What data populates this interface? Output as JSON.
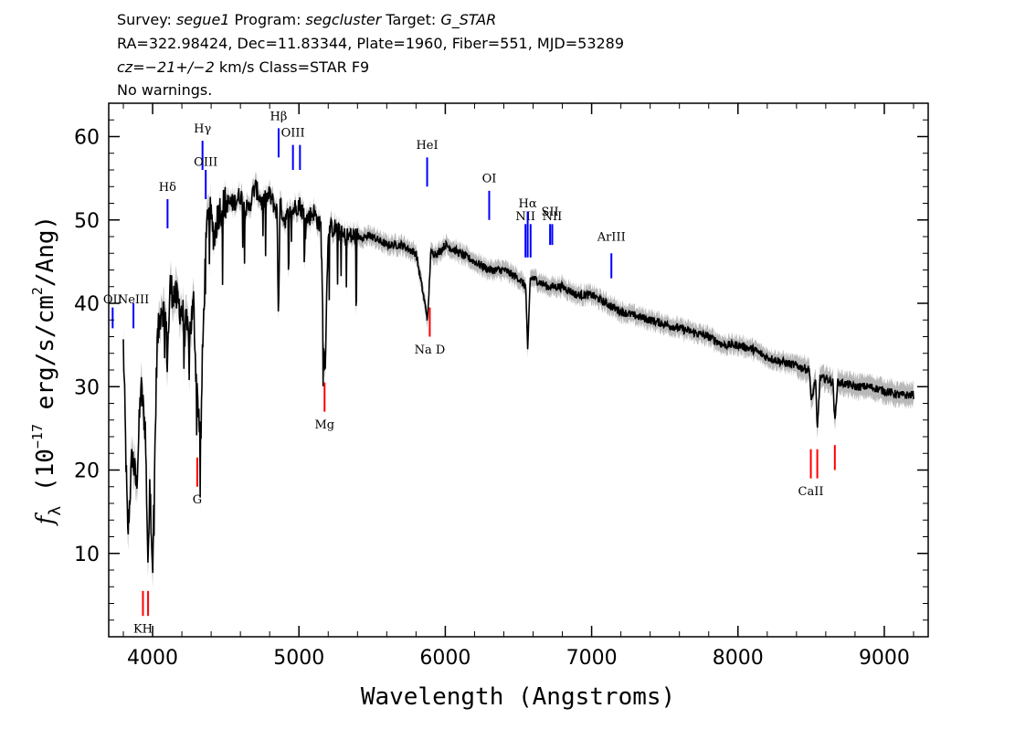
{
  "header": {
    "line1": {
      "survey_label": "Survey: ",
      "survey": "segue1",
      "program_label": " Program: ",
      "program": "segcluster",
      "target_label": " Target: ",
      "target": "G_STAR"
    },
    "line2": "RA=322.98424, Dec=11.83344, Plate=1960, Fiber=551, MJD=53289",
    "line3": {
      "cz_label": "cz",
      "cz_value": "=−21+/−2",
      "rest": " km/s Class=STAR F9"
    },
    "line4": "No warnings."
  },
  "colors": {
    "flux": "#000000",
    "error_band": "#b8b8b8",
    "emission_line": "#0000ff",
    "absorption_line": "#ff0000"
  },
  "chart_data": {
    "type": "line",
    "xlabel": "Wavelength (Angstroms)",
    "ylabel_prefix": "f",
    "ylabel_subscript": "λ",
    "ylabel_rest": " (10",
    "ylabel_exp": "−17",
    "ylabel_units": " erg/s/cm",
    "ylabel_units_exp": "2",
    "ylabel_units_end": "/Ang)",
    "xlim": [
      3700,
      9300
    ],
    "ylim": [
      0,
      64
    ],
    "xticks": [
      4000,
      5000,
      6000,
      7000,
      8000,
      9000
    ],
    "yticks": [
      10,
      20,
      30,
      40,
      50,
      60
    ],
    "series": [
      {
        "x": [
          3800,
          3830,
          3860,
          3890,
          3920,
          3950,
          3970,
          3980,
          4000,
          4030,
          4060,
          4090,
          4100,
          4120,
          4150,
          4200,
          4250,
          4280,
          4300,
          4330,
          4340,
          4360,
          4380,
          4420,
          4450,
          4500,
          4550,
          4600,
          4650,
          4700,
          4750,
          4800,
          4850,
          4860,
          4870,
          4900,
          4950,
          5000,
          5050,
          5100,
          5150,
          5170,
          5180,
          5200,
          5250,
          5300,
          5400,
          5500,
          5600,
          5700,
          5800,
          5880,
          5900,
          5950,
          6000,
          6100,
          6200,
          6300,
          6400,
          6500,
          6550,
          6563,
          6580,
          6600,
          6700,
          6800,
          6900,
          7000,
          7100,
          7200,
          7300,
          7400,
          7500,
          7600,
          7700,
          7800,
          7900,
          8000,
          8100,
          8200,
          8300,
          8400,
          8490,
          8500,
          8530,
          8542,
          8560,
          8600,
          8650,
          8662,
          8680,
          8700,
          8800,
          8900,
          9000,
          9100,
          9200
        ],
        "y": [
          35,
          12,
          22,
          18,
          30,
          25,
          7.5,
          20,
          8,
          35,
          40,
          38,
          33,
          42,
          41,
          39,
          36,
          40,
          30,
          24,
          33,
          45,
          52,
          48,
          51,
          52,
          52,
          53,
          51,
          54,
          52,
          53,
          51,
          38,
          52,
          50,
          51,
          52,
          50,
          51,
          49,
          34,
          33,
          49,
          49,
          48,
          48,
          48,
          47,
          47,
          46,
          38,
          46,
          46,
          47,
          46,
          45,
          44,
          44,
          43,
          42,
          34,
          43,
          43,
          42,
          42,
          41,
          41,
          40,
          39,
          38.5,
          38,
          37.5,
          37,
          36.5,
          36,
          35,
          35,
          34.5,
          33.5,
          33,
          32.5,
          32,
          28,
          31,
          24.5,
          31,
          31,
          30.5,
          25.5,
          30.5,
          30.5,
          30,
          30,
          29.5,
          29,
          29
        ]
      }
    ],
    "line_markers": [
      {
        "label": "OII",
        "wave": 3727,
        "kind": "emission",
        "y1": 37,
        "y2": 39.5,
        "label_y": 40
      },
      {
        "label": "NeIII",
        "wave": 3869,
        "kind": "emission",
        "y1": 37,
        "y2": 40,
        "label_y": 40
      },
      {
        "label": "Hδ",
        "wave": 4102,
        "kind": "emission",
        "y1": 49,
        "y2": 52.5,
        "label_y": 53.5
      },
      {
        "label": "Hγ",
        "wave": 4341,
        "kind": "emission",
        "y1": 56,
        "y2": 59.5,
        "label_y": 60.5
      },
      {
        "label": "OIII",
        "wave": 4363,
        "kind": "emission",
        "y1": 52.5,
        "y2": 56,
        "label_y": 56.5
      },
      {
        "label": "Hβ",
        "wave": 4861,
        "kind": "emission",
        "y1": 57.5,
        "y2": 61,
        "label_y": 62
      },
      {
        "label": "OIII",
        "wave": 4959,
        "kind": "emission",
        "y1": 56,
        "y2": 59,
        "label_y": 60
      },
      {
        "label": "OIII",
        "wave": 5007,
        "kind": "emission",
        "y1": 56,
        "y2": 59
      },
      {
        "label": "HeI",
        "wave": 5876,
        "kind": "emission",
        "y1": 54,
        "y2": 57.5,
        "label_y": 58.5
      },
      {
        "label": "OI",
        "wave": 6300,
        "kind": "emission",
        "y1": 50,
        "y2": 53.5,
        "label_y": 54.5
      },
      {
        "label": "NII",
        "wave": 6548,
        "kind": "emission",
        "y1": 45.5,
        "y2": 49.5,
        "label_y": 50
      },
      {
        "label": "Hα",
        "wave": 6563,
        "kind": "emission",
        "y1": 45.5,
        "y2": 51,
        "label_y": 51.5
      },
      {
        "label": "NII",
        "wave": 6583,
        "kind": "emission",
        "y1": 45.5,
        "y2": 49.5
      },
      {
        "label": "SII",
        "wave": 6716,
        "kind": "emission",
        "y1": 47,
        "y2": 49.5,
        "label_y": 50.5
      },
      {
        "label": "NII",
        "wave": 6731,
        "kind": "emission",
        "y1": 47,
        "y2": 49.5,
        "label_y": 50
      },
      {
        "label": "ArIII",
        "wave": 7135,
        "kind": "emission",
        "y1": 43,
        "y2": 46,
        "label_y": 47.5
      },
      {
        "label": "KH",
        "wave": 3934,
        "kind": "absorption",
        "y1": 2.5,
        "y2": 5.5,
        "label_y": 0.5
      },
      {
        "label": "KH",
        "wave": 3969,
        "kind": "absorption",
        "y1": 2.5,
        "y2": 5.5
      },
      {
        "label": "G",
        "wave": 4305,
        "kind": "absorption",
        "y1": 18,
        "y2": 21.5,
        "label_y": 16
      },
      {
        "label": "Mg",
        "wave": 5175,
        "kind": "absorption",
        "y1": 27,
        "y2": 30.5,
        "label_y": 25
      },
      {
        "label": "Na D",
        "wave": 5894,
        "kind": "absorption",
        "y1": 36,
        "y2": 39.5,
        "label_y": 34
      },
      {
        "label": "CaII",
        "wave": 8498,
        "kind": "absorption",
        "y1": 19,
        "y2": 22.5,
        "label_y": 17
      },
      {
        "label": "CaII",
        "wave": 8542,
        "kind": "absorption",
        "y1": 19,
        "y2": 22.5
      },
      {
        "label": "CaII",
        "wave": 8662,
        "kind": "absorption",
        "y1": 20,
        "y2": 23
      }
    ]
  }
}
